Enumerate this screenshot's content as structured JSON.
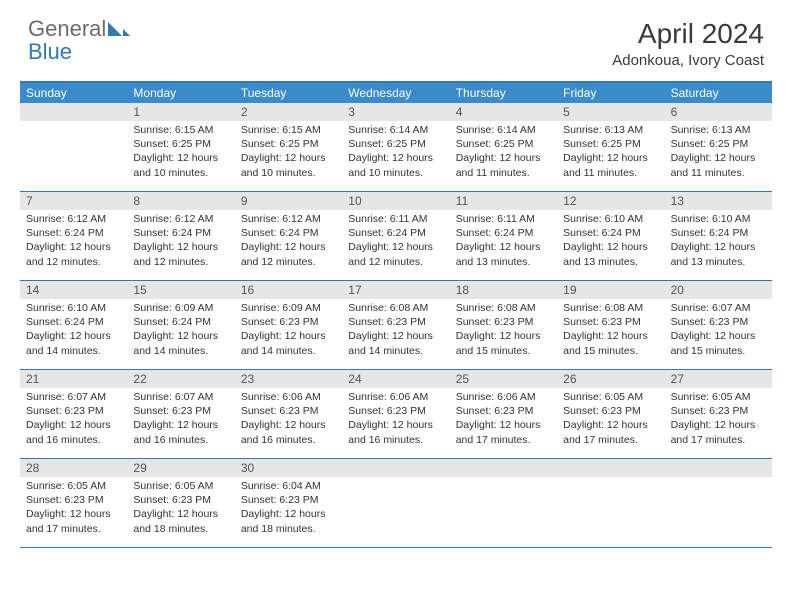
{
  "brand": {
    "part1": "General",
    "part2": "Blue"
  },
  "title": "April 2024",
  "location": "Adonkoua, Ivory Coast",
  "colors": {
    "header_blue": "#3a8bc9",
    "rule_blue": "#2f79b9",
    "grey_bar": "#e6e6e6",
    "text": "#333333",
    "logo_grey": "#6b6b6b"
  },
  "daysOfWeek": [
    "Sunday",
    "Monday",
    "Tuesday",
    "Wednesday",
    "Thursday",
    "Friday",
    "Saturday"
  ],
  "weeks": [
    [
      {
        "n": "",
        "lines": []
      },
      {
        "n": "1",
        "lines": [
          "Sunrise: 6:15 AM",
          "Sunset: 6:25 PM",
          "Daylight: 12 hours",
          "and 10 minutes."
        ]
      },
      {
        "n": "2",
        "lines": [
          "Sunrise: 6:15 AM",
          "Sunset: 6:25 PM",
          "Daylight: 12 hours",
          "and 10 minutes."
        ]
      },
      {
        "n": "3",
        "lines": [
          "Sunrise: 6:14 AM",
          "Sunset: 6:25 PM",
          "Daylight: 12 hours",
          "and 10 minutes."
        ]
      },
      {
        "n": "4",
        "lines": [
          "Sunrise: 6:14 AM",
          "Sunset: 6:25 PM",
          "Daylight: 12 hours",
          "and 11 minutes."
        ]
      },
      {
        "n": "5",
        "lines": [
          "Sunrise: 6:13 AM",
          "Sunset: 6:25 PM",
          "Daylight: 12 hours",
          "and 11 minutes."
        ]
      },
      {
        "n": "6",
        "lines": [
          "Sunrise: 6:13 AM",
          "Sunset: 6:25 PM",
          "Daylight: 12 hours",
          "and 11 minutes."
        ]
      }
    ],
    [
      {
        "n": "7",
        "lines": [
          "Sunrise: 6:12 AM",
          "Sunset: 6:24 PM",
          "Daylight: 12 hours",
          "and 12 minutes."
        ]
      },
      {
        "n": "8",
        "lines": [
          "Sunrise: 6:12 AM",
          "Sunset: 6:24 PM",
          "Daylight: 12 hours",
          "and 12 minutes."
        ]
      },
      {
        "n": "9",
        "lines": [
          "Sunrise: 6:12 AM",
          "Sunset: 6:24 PM",
          "Daylight: 12 hours",
          "and 12 minutes."
        ]
      },
      {
        "n": "10",
        "lines": [
          "Sunrise: 6:11 AM",
          "Sunset: 6:24 PM",
          "Daylight: 12 hours",
          "and 12 minutes."
        ]
      },
      {
        "n": "11",
        "lines": [
          "Sunrise: 6:11 AM",
          "Sunset: 6:24 PM",
          "Daylight: 12 hours",
          "and 13 minutes."
        ]
      },
      {
        "n": "12",
        "lines": [
          "Sunrise: 6:10 AM",
          "Sunset: 6:24 PM",
          "Daylight: 12 hours",
          "and 13 minutes."
        ]
      },
      {
        "n": "13",
        "lines": [
          "Sunrise: 6:10 AM",
          "Sunset: 6:24 PM",
          "Daylight: 12 hours",
          "and 13 minutes."
        ]
      }
    ],
    [
      {
        "n": "14",
        "lines": [
          "Sunrise: 6:10 AM",
          "Sunset: 6:24 PM",
          "Daylight: 12 hours",
          "and 14 minutes."
        ]
      },
      {
        "n": "15",
        "lines": [
          "Sunrise: 6:09 AM",
          "Sunset: 6:24 PM",
          "Daylight: 12 hours",
          "and 14 minutes."
        ]
      },
      {
        "n": "16",
        "lines": [
          "Sunrise: 6:09 AM",
          "Sunset: 6:23 PM",
          "Daylight: 12 hours",
          "and 14 minutes."
        ]
      },
      {
        "n": "17",
        "lines": [
          "Sunrise: 6:08 AM",
          "Sunset: 6:23 PM",
          "Daylight: 12 hours",
          "and 14 minutes."
        ]
      },
      {
        "n": "18",
        "lines": [
          "Sunrise: 6:08 AM",
          "Sunset: 6:23 PM",
          "Daylight: 12 hours",
          "and 15 minutes."
        ]
      },
      {
        "n": "19",
        "lines": [
          "Sunrise: 6:08 AM",
          "Sunset: 6:23 PM",
          "Daylight: 12 hours",
          "and 15 minutes."
        ]
      },
      {
        "n": "20",
        "lines": [
          "Sunrise: 6:07 AM",
          "Sunset: 6:23 PM",
          "Daylight: 12 hours",
          "and 15 minutes."
        ]
      }
    ],
    [
      {
        "n": "21",
        "lines": [
          "Sunrise: 6:07 AM",
          "Sunset: 6:23 PM",
          "Daylight: 12 hours",
          "and 16 minutes."
        ]
      },
      {
        "n": "22",
        "lines": [
          "Sunrise: 6:07 AM",
          "Sunset: 6:23 PM",
          "Daylight: 12 hours",
          "and 16 minutes."
        ]
      },
      {
        "n": "23",
        "lines": [
          "Sunrise: 6:06 AM",
          "Sunset: 6:23 PM",
          "Daylight: 12 hours",
          "and 16 minutes."
        ]
      },
      {
        "n": "24",
        "lines": [
          "Sunrise: 6:06 AM",
          "Sunset: 6:23 PM",
          "Daylight: 12 hours",
          "and 16 minutes."
        ]
      },
      {
        "n": "25",
        "lines": [
          "Sunrise: 6:06 AM",
          "Sunset: 6:23 PM",
          "Daylight: 12 hours",
          "and 17 minutes."
        ]
      },
      {
        "n": "26",
        "lines": [
          "Sunrise: 6:05 AM",
          "Sunset: 6:23 PM",
          "Daylight: 12 hours",
          "and 17 minutes."
        ]
      },
      {
        "n": "27",
        "lines": [
          "Sunrise: 6:05 AM",
          "Sunset: 6:23 PM",
          "Daylight: 12 hours",
          "and 17 minutes."
        ]
      }
    ],
    [
      {
        "n": "28",
        "lines": [
          "Sunrise: 6:05 AM",
          "Sunset: 6:23 PM",
          "Daylight: 12 hours",
          "and 17 minutes."
        ]
      },
      {
        "n": "29",
        "lines": [
          "Sunrise: 6:05 AM",
          "Sunset: 6:23 PM",
          "Daylight: 12 hours",
          "and 18 minutes."
        ]
      },
      {
        "n": "30",
        "lines": [
          "Sunrise: 6:04 AM",
          "Sunset: 6:23 PM",
          "Daylight: 12 hours",
          "and 18 minutes."
        ]
      },
      {
        "n": "",
        "lines": []
      },
      {
        "n": "",
        "lines": []
      },
      {
        "n": "",
        "lines": []
      },
      {
        "n": "",
        "lines": []
      }
    ]
  ]
}
